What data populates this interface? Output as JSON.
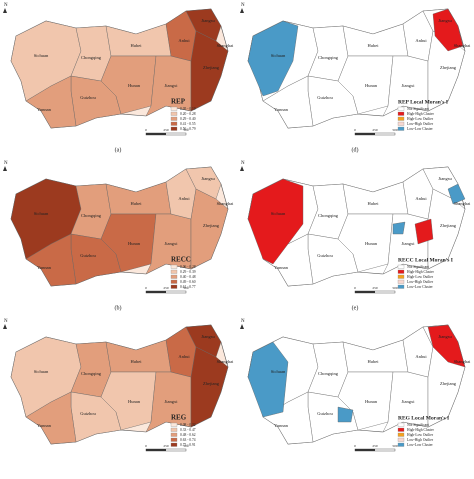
{
  "place_names": [
    "Sichuan",
    "Chongqing",
    "Guizhou",
    "Yunnan",
    "Hubei",
    "Hunan",
    "Jiangxi",
    "Anhui",
    "Jiangsu",
    "Zhejiang",
    "Shanghai"
  ],
  "north": "N",
  "scale_labels": [
    "0",
    "250",
    "500"
  ],
  "moran_legend": [
    "Not Significant",
    "High-High Cluster",
    "High-Low Outlier",
    "Low-High Outlier",
    "Low-Low Cluster"
  ],
  "panels": [
    {
      "label": "(a)",
      "legend_title": "REP",
      "legend_items": [
        "0.05 - 0.19",
        "0.20 - 0.28",
        "0.29 - 0.40",
        "0.41 - 0.55",
        "0.56 - 0.79"
      ]
    },
    {
      "label": "(d)",
      "legend_title": "REP Local Moran's I"
    },
    {
      "label": "(b)",
      "legend_title": "RECC",
      "legend_items": [
        "0.06 - 0.28",
        "0.29 - 0.39",
        "0.40 - 0.48",
        "0.49 - 0.60",
        "0.61 - 0.77"
      ]
    },
    {
      "label": "(e)",
      "legend_title": "RECC Local Moran's I"
    },
    {
      "legend_title": "REG",
      "legend_items": [
        "0.08 - 0.32",
        "0.33 - 0.47",
        "0.48 - 0.62",
        "0.63 - 0.74",
        "0.75 - 0.91"
      ]
    },
    {
      "legend_title": "REG Local Moran's I"
    }
  ]
}
